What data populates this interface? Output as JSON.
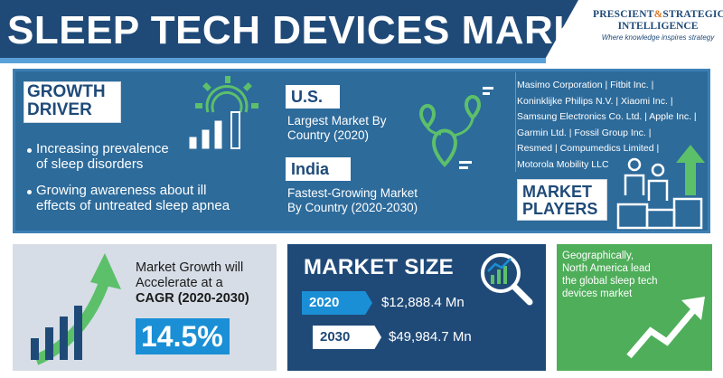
{
  "header": {
    "title": "SLEEP TECH DEVICES MARKET",
    "logo": {
      "line1_a": "PRESCIENT",
      "line1_amp": "&",
      "line1_b": "STRATEGIC",
      "line2": "INTELLIGENCE",
      "tagline": "Where knowledge inspires strategy"
    }
  },
  "growth_driver": {
    "title_line1": "GROWTH",
    "title_line2": "DRIVER",
    "items": [
      {
        "line1": "Increasing prevalence",
        "line2": "of sleep disorders"
      },
      {
        "line1": "Growing awareness about ill",
        "line2": "effects of untreated sleep apnea"
      }
    ],
    "icon": "gear-bar-chart-icon"
  },
  "regions": {
    "largest": {
      "country": "U.S.",
      "line1": "Largest Market By",
      "line2": "Country (2020)"
    },
    "fastest": {
      "country": "India",
      "line1": "Fastest-Growing Market",
      "line2": "By Country (2020-2030)"
    },
    "icon": "map-pins-icon"
  },
  "market_players": {
    "lines": [
      "Masimo Corporation | Fitbit Inc. |",
      "Koninklijke Philips N.V. | Xiaomi Inc. |",
      "Samsung Electronics Co. Ltd. | Apple Inc. |",
      "Garmin Ltd. | Fossil Group Inc. |",
      "Resmed | Compumedics Limited |",
      "Motorola Mobility LLC"
    ],
    "title_line1": "MARKET",
    "title_line2": "PLAYERS",
    "icon": "podium-people-icon"
  },
  "cagr": {
    "line1": "Market Growth will",
    "line2": "Accelerate at a",
    "line3": "CAGR (2020-2030)",
    "value": "14.5%",
    "icon": "growth-bars-arrow-icon"
  },
  "market_size": {
    "title": "MARKET SIZE",
    "rows": [
      {
        "year": "2020",
        "value": "$12,888.4 Mn"
      },
      {
        "year": "2030",
        "value": "$49,984.7 Mn"
      }
    ],
    "icon": "magnifier-chart-icon"
  },
  "geography": {
    "line1": "Geographically,",
    "line2": "North America lead",
    "line3": "the global sleep tech",
    "line4": "devices market",
    "icon": "trend-arrow-icon"
  },
  "colors": {
    "navy": "#1f4a78",
    "panel_blue": "#2d6b9b",
    "accent_blue": "#1a8fd6",
    "green": "#4fae5a",
    "light_green": "#5cc06a",
    "gray": "#d6dde6",
    "orange": "#e07a2a"
  }
}
